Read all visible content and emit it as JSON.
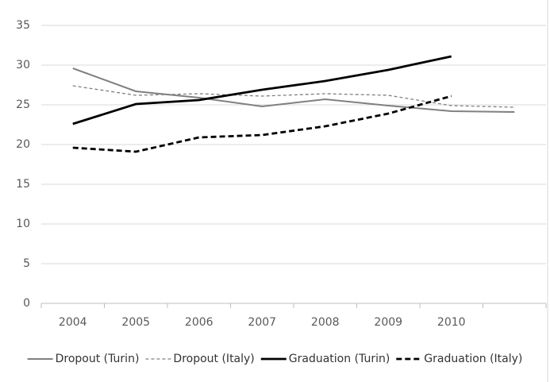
{
  "chart_data": {
    "type": "line",
    "categories": [
      "2004",
      "2005",
      "2006",
      "2007",
      "2008",
      "2009",
      "2010",
      null
    ],
    "series": [
      {
        "name": "Dropout (Turin)",
        "color": "#808080",
        "width": 2,
        "dash": false,
        "values": [
          29.6,
          26.7,
          25.9,
          24.8,
          25.7,
          24.9,
          24.2,
          24.1
        ]
      },
      {
        "name": "Dropout (Italy)",
        "color": "#808080",
        "width": 1.3,
        "dash": true,
        "values": [
          27.4,
          26.2,
          26.4,
          26.1,
          26.4,
          26.2,
          24.9,
          24.7
        ]
      },
      {
        "name": "Graduation (Turin)",
        "color": "#000000",
        "width": 2.8,
        "dash": false,
        "values": [
          22.6,
          25.1,
          25.6,
          26.9,
          28.0,
          29.4,
          31.1,
          null
        ]
      },
      {
        "name": "Graduation (Italy)",
        "color": "#000000",
        "width": 2.8,
        "dash": true,
        "values": [
          19.6,
          19.1,
          20.9,
          21.2,
          22.3,
          23.9,
          26.1,
          null
        ]
      }
    ],
    "ylim": [
      0,
      35
    ],
    "yticks": [
      0,
      5,
      10,
      15,
      20,
      25,
      30,
      35
    ],
    "grid": true,
    "legend": "bottom"
  }
}
